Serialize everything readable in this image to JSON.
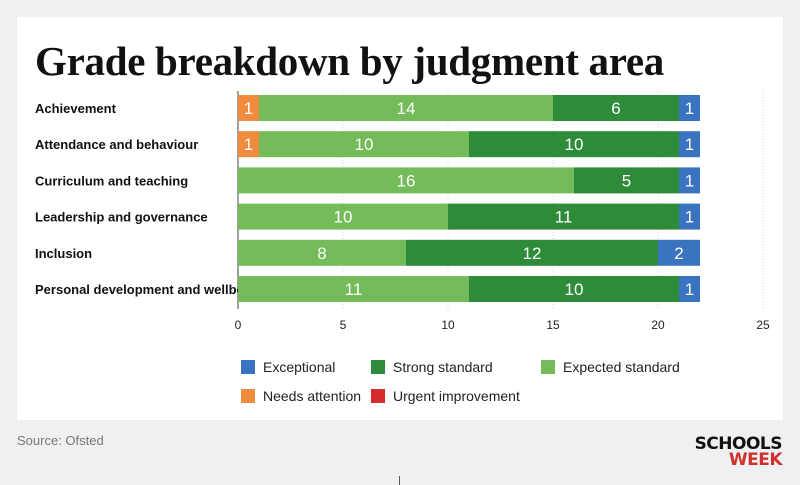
{
  "title": "Grade breakdown by judgment area",
  "source": "Source: Ofsted",
  "logo": {
    "line1": "SCHOOLS",
    "line2": "WEEK"
  },
  "chart_data": {
    "type": "bar",
    "orientation": "horizontal",
    "stacked": true,
    "categories": [
      "Achievement",
      "Attendance and behaviour",
      "Curriculum and teaching",
      "Leadership and governance",
      "Inclusion",
      "Personal development and wellbeing"
    ],
    "series": [
      {
        "name": "Needs attention",
        "color": "#f08a3c",
        "values": [
          1,
          1,
          0,
          0,
          0,
          0
        ]
      },
      {
        "name": "Expected standard",
        "color": "#74bb5a",
        "values": [
          14,
          10,
          16,
          10,
          8,
          11
        ]
      },
      {
        "name": "Strong standard",
        "color": "#2e8b39",
        "values": [
          6,
          10,
          5,
          11,
          12,
          10
        ]
      },
      {
        "name": "Exceptional",
        "color": "#3a74c0",
        "values": [
          1,
          1,
          1,
          1,
          2,
          1
        ]
      },
      {
        "name": "Urgent improvement",
        "color": "#d62c2c",
        "values": [
          0,
          0,
          0,
          0,
          0,
          0
        ]
      }
    ],
    "legend_order": [
      "Exceptional",
      "Strong standard",
      "Expected standard",
      "Needs attention",
      "Urgent improvement"
    ],
    "xlim": [
      0,
      25
    ],
    "xticks": [
      0,
      5,
      10,
      15,
      20,
      25
    ],
    "grid": true,
    "legend_position": "bottom"
  }
}
